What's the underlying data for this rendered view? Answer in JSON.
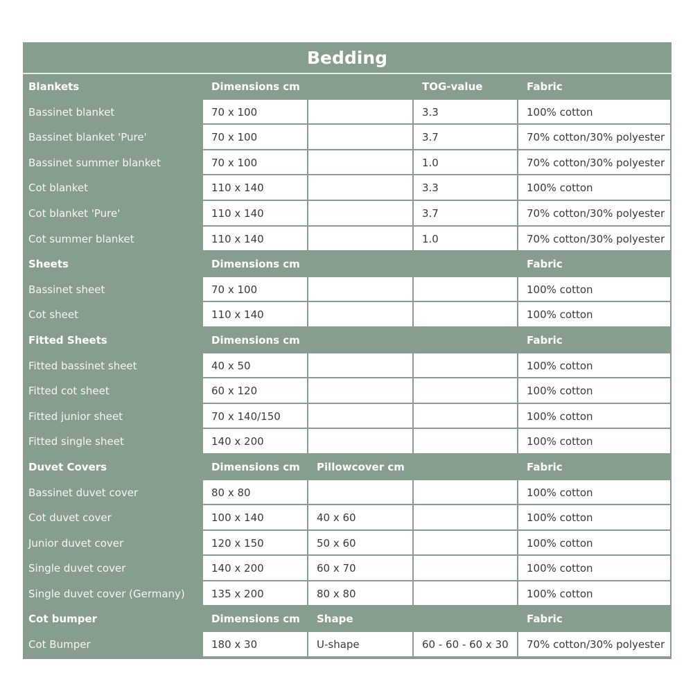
{
  "title": "Bedding",
  "colors": {
    "header_bg": "#879e8f",
    "cell_bg": "#ffffff"
  },
  "sections": [
    {
      "header": [
        "Blankets",
        "Dimensions cm",
        "",
        "TOG-value",
        "Fabric"
      ],
      "rows": [
        [
          "Bassinet blanket",
          "70 x 100",
          "",
          "3.3",
          "100% cotton"
        ],
        [
          "Bassinet blanket 'Pure'",
          "70 x 100",
          "",
          "3.7",
          "70% cotton/30% polyester"
        ],
        [
          "Bassinet summer blanket",
          "70 x 100",
          "",
          "1.0",
          "70% cotton/30% polyester"
        ],
        [
          "Cot blanket",
          "110 x 140",
          "",
          "3.3",
          "100% cotton"
        ],
        [
          "Cot blanket 'Pure'",
          "110 x 140",
          "",
          "3.7",
          "70% cotton/30% polyester"
        ],
        [
          "Cot summer blanket",
          "110 x 140",
          "",
          "1.0",
          "70% cotton/30% polyester"
        ]
      ]
    },
    {
      "header": [
        "Sheets",
        "Dimensions cm",
        "",
        "",
        "Fabric"
      ],
      "rows": [
        [
          "Bassinet sheet",
          "70 x 100",
          "",
          "",
          "100% cotton"
        ],
        [
          "Cot sheet",
          "110 x 140",
          "",
          "",
          "100% cotton"
        ]
      ]
    },
    {
      "header": [
        "Fitted Sheets",
        "Dimensions cm",
        "",
        "",
        "Fabric"
      ],
      "rows": [
        [
          "Fitted bassinet sheet",
          "40 x 50",
          "",
          "",
          "100% cotton"
        ],
        [
          "Fitted cot sheet",
          "60 x 120",
          "",
          "",
          "100% cotton"
        ],
        [
          "Fitted junior sheet",
          "70 x 140/150",
          "",
          "",
          "100% cotton"
        ],
        [
          "Fitted single sheet",
          "140 x 200",
          "",
          "",
          "100% cotton"
        ]
      ]
    },
    {
      "header": [
        "Duvet Covers",
        "Dimensions cm",
        "Pillowcover cm",
        "",
        "Fabric"
      ],
      "rows": [
        [
          "Bassinet duvet cover",
          "80 x 80",
          "",
          "",
          "100% cotton"
        ],
        [
          "Cot duvet cover",
          "100 x 140",
          "40 x 60",
          "",
          "100% cotton"
        ],
        [
          "Junior duvet cover",
          "120 x 150",
          "50 x 60",
          "",
          "100% cotton"
        ],
        [
          "Single duvet cover",
          "140 x 200",
          "60 x 70",
          "",
          "100% cotton"
        ],
        [
          "Single duvet cover (Germany)",
          "135 x 200",
          "80 x 80",
          "",
          "100% cotton"
        ]
      ]
    },
    {
      "header": [
        "Cot bumper",
        "Dimensions cm",
        "Shape",
        "",
        "Fabric"
      ],
      "rows": [
        [
          "Cot Bumper",
          "180 x 30",
          "U-shape",
          "60 - 60 - 60 x 30",
          "70% cotton/30% polyester"
        ]
      ]
    }
  ]
}
